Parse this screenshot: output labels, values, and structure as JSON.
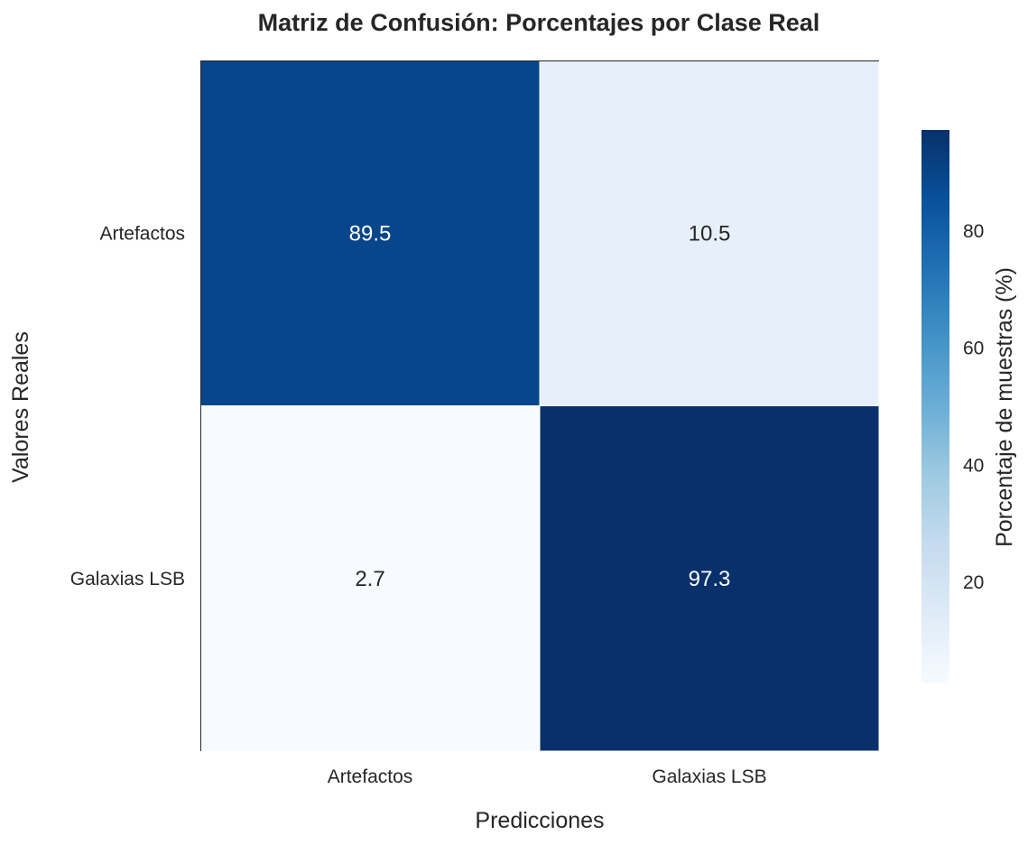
{
  "chart_data": {
    "type": "heatmap",
    "title": "Matriz de Confusión: Porcentajes por Clase Real",
    "xlabel": "Predicciones",
    "ylabel": "Valores Reales",
    "x_categories": [
      "Artefactos",
      "Galaxias LSB"
    ],
    "y_categories": [
      "Artefactos",
      "Galaxias LSB"
    ],
    "values": [
      [
        89.5,
        10.5
      ],
      [
        2.7,
        97.3
      ]
    ],
    "value_labels": [
      [
        "89.5",
        "10.5"
      ],
      [
        "2.7",
        "97.3"
      ]
    ],
    "colormap": "Blues",
    "colorbar": {
      "label": "Porcentaje de muestras (%)",
      "range": [
        2.7,
        97.3
      ],
      "ticks": [
        20,
        40,
        60,
        80
      ]
    }
  }
}
